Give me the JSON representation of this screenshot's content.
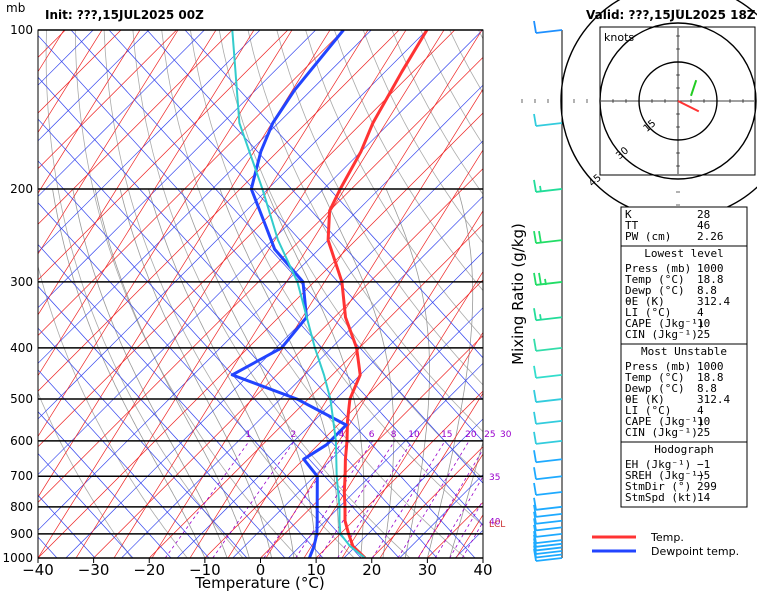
{
  "header": {
    "unit_mb": "mb",
    "init": "Init: ???,15JUL2025 00Z",
    "valid": "Valid: ???,15JUL2025 18Z"
  },
  "chart_data": {
    "type": "line",
    "title": "",
    "xlabel": "Temperature (°C)",
    "ylabel": "Mixing Ratio (g/kg)",
    "xlim": [
      -40,
      40
    ],
    "ylim": [
      1000,
      100
    ],
    "y_scale": "log-pressure (skew-T)",
    "x_ticks": [
      "−40",
      "−30",
      "−20",
      "−10",
      "0",
      "10",
      "20",
      "30",
      "40"
    ],
    "y_ticks": [
      1000,
      900,
      800,
      700,
      600,
      500,
      400,
      300,
      200,
      100
    ],
    "mixing_ratio_labels": [
      "1",
      "2",
      "4",
      "6",
      "8",
      "10",
      "15",
      "20",
      "25",
      "30",
      "35",
      "40"
    ],
    "series": [
      {
        "name": "Temp.",
        "color": "#ff3333",
        "points": [
          [
            1000,
            18.8
          ],
          [
            950,
            14.5
          ],
          [
            900,
            11.5
          ],
          [
            850,
            8.5
          ],
          [
            800,
            6
          ],
          [
            750,
            3.2
          ],
          [
            700,
            0.5
          ],
          [
            650,
            -2.5
          ],
          [
            600,
            -5.5
          ],
          [
            550,
            -9
          ],
          [
            500,
            -12.5
          ],
          [
            450,
            -15
          ],
          [
            400,
            -20.5
          ],
          [
            350,
            -28
          ],
          [
            300,
            -35
          ],
          [
            250,
            -45
          ],
          [
            220,
            -50
          ],
          [
            200,
            -52
          ],
          [
            170,
            -55
          ],
          [
            150,
            -58
          ],
          [
            120,
            -62
          ],
          [
            100,
            -65
          ]
        ]
      },
      {
        "name": "Dewpoint temp.",
        "color": "#2244ff",
        "points": [
          [
            1000,
            8.8
          ],
          [
            950,
            7.5
          ],
          [
            900,
            5.8
          ],
          [
            850,
            3.5
          ],
          [
            800,
            1
          ],
          [
            700,
            -4.5
          ],
          [
            650,
            -10
          ],
          [
            610,
            -8.5
          ],
          [
            560,
            -8.5
          ],
          [
            500,
            -22
          ],
          [
            450,
            -38
          ],
          [
            400,
            -34
          ],
          [
            350,
            -35
          ],
          [
            300,
            -42
          ],
          [
            260,
            -53
          ],
          [
            230,
            -60
          ],
          [
            200,
            -68
          ],
          [
            170,
            -73
          ],
          [
            150,
            -76
          ],
          [
            130,
            -78
          ],
          [
            100,
            -80
          ]
        ]
      },
      {
        "name": "Parcel",
        "color": "#33cccc",
        "points": [
          [
            1000,
            18.8
          ],
          [
            950,
            14
          ],
          [
            900,
            10
          ],
          [
            850,
            7.5
          ],
          [
            800,
            5
          ],
          [
            700,
            -1
          ],
          [
            600,
            -7.5
          ],
          [
            500,
            -16
          ],
          [
            450,
            -21.5
          ],
          [
            400,
            -28
          ],
          [
            300,
            -43
          ],
          [
            250,
            -54
          ],
          [
            200,
            -66
          ],
          [
            150,
            -82
          ],
          [
            100,
            -100
          ]
        ]
      }
    ],
    "annotations": [
      "LCL"
    ],
    "legend": {
      "position": "bottom-right",
      "entries": [
        "Temp.",
        "Dewpoint temp."
      ]
    },
    "hodograph": {
      "unit": "knots",
      "ring_labels": [
        "15",
        "30",
        "45"
      ],
      "segments": [
        {
          "color": "#ff3333",
          "points": [
            [
              0,
              0
            ],
            [
              8,
              -4
            ]
          ]
        },
        {
          "color": "#22cc22",
          "points": [
            [
              5,
              2
            ],
            [
              7,
              8
            ]
          ]
        }
      ]
    },
    "winds": [
      {
        "p": 1000,
        "dir": 300,
        "spd": 14,
        "color": "#1eaaff"
      },
      {
        "p": 985,
        "dir": 300,
        "spd": 14,
        "color": "#1eaaff"
      },
      {
        "p": 970,
        "dir": 300,
        "spd": 12,
        "color": "#1eaaff"
      },
      {
        "p": 955,
        "dir": 300,
        "spd": 12,
        "color": "#1eaaff"
      },
      {
        "p": 940,
        "dir": 290,
        "spd": 10,
        "color": "#1eaaff"
      },
      {
        "p": 925,
        "dir": 285,
        "spd": 10,
        "color": "#1eaaff"
      },
      {
        "p": 900,
        "dir": 270,
        "spd": 10,
        "color": "#1eaaff"
      },
      {
        "p": 875,
        "dir": 260,
        "spd": 10,
        "color": "#1eaaff"
      },
      {
        "p": 850,
        "dir": 250,
        "spd": 10,
        "color": "#1eaaff"
      },
      {
        "p": 825,
        "dir": 240,
        "spd": 10,
        "color": "#1eaaff"
      },
      {
        "p": 800,
        "dir": 240,
        "spd": 10,
        "color": "#1eaaff"
      },
      {
        "p": 750,
        "dir": 230,
        "spd": 10,
        "color": "#1eaaff"
      },
      {
        "p": 700,
        "dir": 230,
        "spd": 10,
        "color": "#1eaaff"
      },
      {
        "p": 650,
        "dir": 220,
        "spd": 10,
        "color": "#1eaaff"
      },
      {
        "p": 600,
        "dir": 190,
        "spd": 10,
        "color": "#33ccdd"
      },
      {
        "p": 550,
        "dir": 180,
        "spd": 10,
        "color": "#33ccdd"
      },
      {
        "p": 500,
        "dir": 180,
        "spd": 10,
        "color": "#33ccdd"
      },
      {
        "p": 450,
        "dir": 180,
        "spd": 10,
        "color": "#33ddcc"
      },
      {
        "p": 400,
        "dir": 180,
        "spd": 10,
        "color": "#33ddaa"
      },
      {
        "p": 350,
        "dir": 180,
        "spd": 15,
        "color": "#22dd99"
      },
      {
        "p": 300,
        "dir": 180,
        "spd": 25,
        "color": "#22dd66"
      },
      {
        "p": 250,
        "dir": 180,
        "spd": 20,
        "color": "#22dd66"
      },
      {
        "p": 200,
        "dir": 180,
        "spd": 15,
        "color": "#22dd99"
      },
      {
        "p": 150,
        "dir": 180,
        "spd": 10,
        "color": "#33ccdd"
      },
      {
        "p": 100,
        "dir": 250,
        "spd": 10,
        "color": "#1e90ff"
      }
    ]
  },
  "indices": {
    "rows": [
      {
        "label": "K",
        "value": "28"
      },
      {
        "label": "TT",
        "value": "46"
      },
      {
        "label": "PW (cm)",
        "value": "2.26"
      }
    ],
    "lowest_level": {
      "title": "Lowest level",
      "rows": [
        {
          "label": "Press (mb)",
          "value": "1000"
        },
        {
          "label": "Temp (°C)",
          "value": "18.8"
        },
        {
          "label": "Dewp (°C)",
          "value": "8.8"
        },
        {
          "label": "θE (K)",
          "value": "312.4"
        },
        {
          "label": "LI (°C)",
          "value": "4"
        },
        {
          "label": "CAPE (Jkg⁻¹)",
          "value": "10"
        },
        {
          "label": "CIN (Jkg⁻¹)",
          "value": "25"
        }
      ]
    },
    "most_unstable": {
      "title": "Most Unstable",
      "rows": [
        {
          "label": "Press (mb)",
          "value": "1000"
        },
        {
          "label": "Temp (°C)",
          "value": "18.8"
        },
        {
          "label": "Dewp (°C)",
          "value": "8.8"
        },
        {
          "label": "θE (K)",
          "value": "312.4"
        },
        {
          "label": "LI (°C)",
          "value": "4"
        },
        {
          "label": "CAPE (Jkg⁻¹)",
          "value": "10"
        },
        {
          "label": "CIN (Jkg⁻¹)",
          "value": "25"
        }
      ]
    },
    "hodograph": {
      "title": "Hodograph",
      "rows": [
        {
          "label": "EH (Jkg⁻¹)",
          "value": "−1"
        },
        {
          "label": "SREH (Jkg⁻¹)",
          "value": "−5"
        },
        {
          "label": "StmDir (°)",
          "value": "299"
        },
        {
          "label": "StmSpd (kt)",
          "value": "14"
        }
      ]
    }
  },
  "legend": {
    "temp": "Temp.",
    "dewp": "Dewpoint temp."
  }
}
